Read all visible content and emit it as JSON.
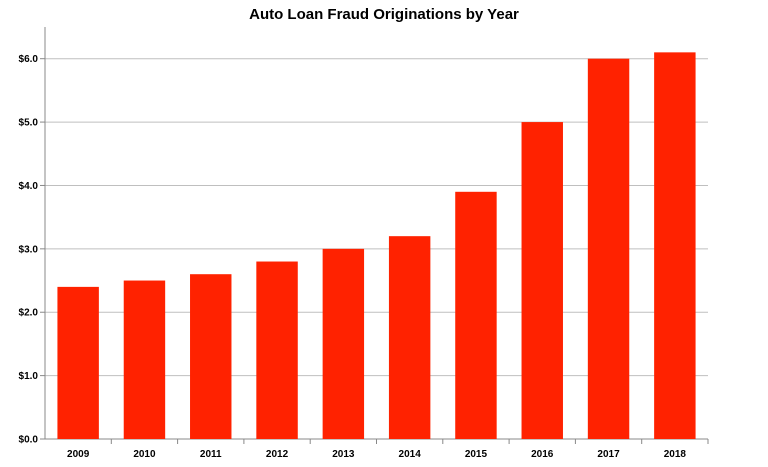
{
  "chart_data": {
    "type": "bar",
    "title": "Auto Loan Fraud Originations by Year",
    "xlabel": "",
    "ylabel": "",
    "categories": [
      "2009",
      "2010",
      "2011",
      "2012",
      "2013",
      "2014",
      "2015",
      "2016",
      "2017",
      "2018"
    ],
    "values": [
      2.4,
      2.5,
      2.6,
      2.8,
      3.0,
      3.2,
      3.9,
      5.0,
      6.0,
      6.1
    ],
    "ylim": [
      0,
      6.5
    ],
    "yticks": [
      0,
      1,
      2,
      3,
      4,
      5,
      6
    ],
    "ytick_labels": [
      "$0.0",
      "$1.0",
      "$2.0",
      "$3.0",
      "$4.0",
      "$5.0",
      "$6.0"
    ],
    "grid": true,
    "legend": "none",
    "bar_color": "#ff2200",
    "grid_color": "#bfbfbf",
    "axis_color": "#888888"
  }
}
